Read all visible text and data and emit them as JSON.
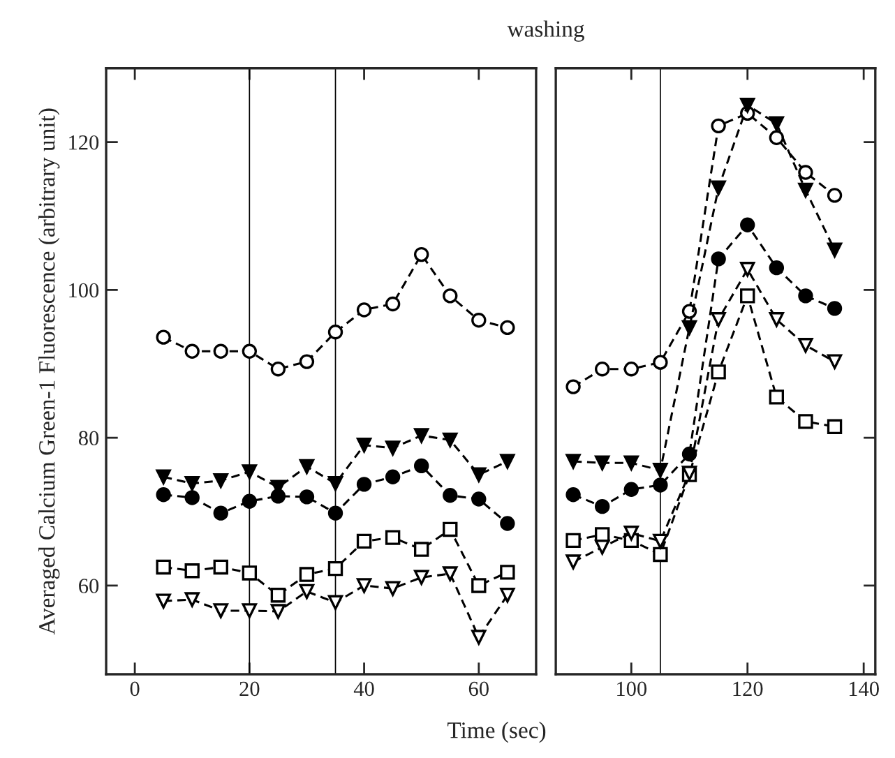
{
  "chart_data": [
    {
      "type": "line",
      "ylabel": "Averaged Calcium Green-1 Fluorescence (arbitrary unit)",
      "xlabel": "Time (sec)",
      "x": [
        5,
        10,
        15,
        20,
        25,
        30,
        35,
        40,
        45,
        50,
        55,
        60,
        65
      ],
      "xlim": [
        -5,
        70
      ],
      "xticks": [
        0,
        20,
        40,
        60
      ],
      "ylim": [
        48,
        130
      ],
      "yticks": [
        60,
        80,
        100,
        120
      ],
      "line_style": "dashed",
      "grid": false,
      "ref_lines": [
        {
          "axis": "x",
          "value": 20
        },
        {
          "axis": "x",
          "value": 35
        }
      ],
      "series": [
        {
          "color": "#000000",
          "marker": "circle",
          "values": [
            93.6,
            91.7,
            91.7,
            91.7,
            89.3,
            90.3,
            94.3,
            97.3,
            98.1,
            104.8,
            99.2,
            95.9,
            94.9
          ]
        },
        {
          "color": "#000000",
          "marker": "triangle",
          "values": [
            74.7,
            73.8,
            74.2,
            75.4,
            73.3,
            76.1,
            73.8,
            79.0,
            78.6,
            80.3,
            79.7,
            75.0,
            76.8
          ]
        },
        {
          "color": "#000000",
          "marker": "circle",
          "values": [
            72.3,
            71.9,
            69.8,
            71.4,
            72.1,
            72.0,
            69.8,
            73.7,
            74.7,
            76.2,
            72.2,
            71.7,
            68.4
          ]
        },
        {
          "color": "#000000",
          "marker": "square",
          "values": [
            62.5,
            62.0,
            62.5,
            61.7,
            58.7,
            61.5,
            62.3,
            66.0,
            66.5,
            64.9,
            67.6,
            60.0,
            61.8
          ]
        },
        {
          "color": "#000000",
          "marker": "triangle",
          "values": [
            57.9,
            58.1,
            56.6,
            56.6,
            56.5,
            59.2,
            57.7,
            60.0,
            59.6,
            61.1,
            61.6,
            53.0,
            58.7
          ]
        }
      ]
    },
    {
      "type": "line",
      "annotations": [
        "washing"
      ],
      "x": [
        90,
        95,
        100,
        105,
        110,
        115,
        120,
        125,
        130,
        135
      ],
      "xlim": [
        87,
        142
      ],
      "xticks": [
        100,
        120,
        140
      ],
      "ylim": [
        48,
        130
      ],
      "yticks": [
        60,
        80,
        100,
        120
      ],
      "tick_labels": "x",
      "line_style": "dashed",
      "grid": false,
      "ref_lines": [
        {
          "axis": "x",
          "value": 105
        }
      ],
      "series": [
        {
          "color": "#000000",
          "marker": "circle",
          "values": [
            86.9,
            89.3,
            89.3,
            90.2,
            97.1,
            122.2,
            123.9,
            120.6,
            115.9,
            112.8
          ]
        },
        {
          "color": "#000000",
          "marker": "triangle",
          "values": [
            76.8,
            76.6,
            76.6,
            75.6,
            94.9,
            113.8,
            125.0,
            122.5,
            113.5,
            105.4
          ]
        },
        {
          "color": "#000000",
          "marker": "circle",
          "values": [
            72.3,
            70.7,
            73.0,
            73.6,
            77.8,
            104.2,
            108.8,
            103.0,
            99.2,
            97.5
          ]
        },
        {
          "color": "#000000",
          "marker": "square",
          "values": [
            66.1,
            66.9,
            66.1,
            64.2,
            75.0,
            88.9,
            99.2,
            85.5,
            82.2,
            81.5
          ]
        },
        {
          "color": "#000000",
          "marker": "triangle",
          "values": [
            63.2,
            65.2,
            67.1,
            66.0,
            75.2,
            96.0,
            102.8,
            96.0,
            92.5,
            90.3
          ]
        }
      ]
    }
  ]
}
